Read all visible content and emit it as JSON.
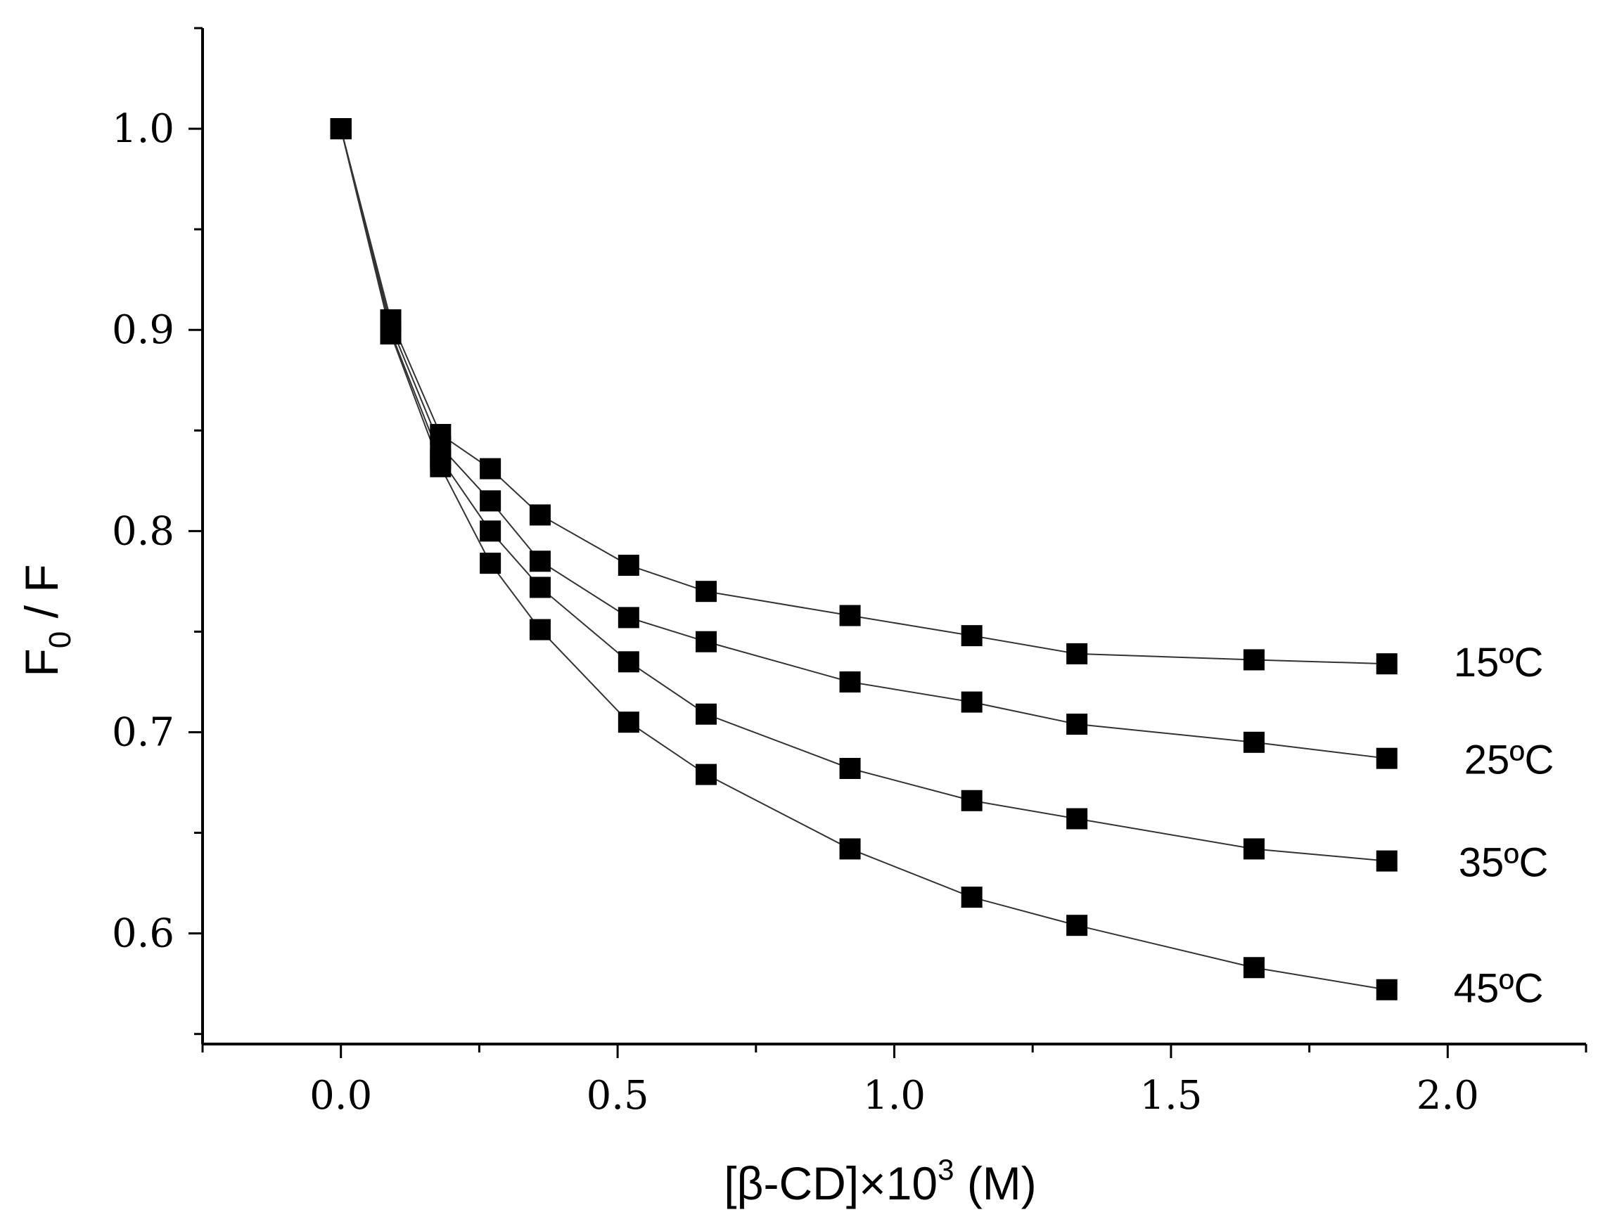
{
  "chart_data": {
    "type": "line",
    "title": "",
    "xlabel": "[β-CD]×10³ (M)",
    "xlabel_parts": {
      "pre": "[β-CD]×10",
      "sup": "3",
      "post": " (M)"
    },
    "ylabel": "F0 / F",
    "ylabel_parts": {
      "main": "F",
      "sub": "0",
      "post": " / F"
    },
    "xlim": [
      -0.25,
      2.25
    ],
    "ylim": [
      0.545,
      1.05
    ],
    "xticks": [
      0.0,
      0.5,
      1.0,
      1.5,
      2.0
    ],
    "xtick_labels": [
      "0.0",
      "0.5",
      "1.0",
      "1.5",
      "2.0"
    ],
    "yticks": [
      0.6,
      0.7,
      0.8,
      0.9,
      1.0
    ],
    "ytick_labels": [
      "0.6",
      "0.7",
      "0.8",
      "0.9",
      "1.0"
    ],
    "x_minor_step": 0.25,
    "y_minor_step": 0.05,
    "marker": "square",
    "color": "#000000",
    "x": [
      0.0,
      0.09,
      0.18,
      0.27,
      0.36,
      0.52,
      0.66,
      0.92,
      1.14,
      1.33,
      1.65,
      1.89
    ],
    "series": [
      {
        "name": "15ºC",
        "values": [
          1.0,
          0.905,
          0.848,
          0.831,
          0.808,
          0.783,
          0.77,
          0.758,
          0.748,
          0.739,
          0.736,
          0.734
        ]
      },
      {
        "name": "25ºC",
        "values": [
          1.0,
          0.902,
          0.842,
          0.815,
          0.785,
          0.757,
          0.745,
          0.725,
          0.715,
          0.704,
          0.695,
          0.687
        ]
      },
      {
        "name": "35ºC",
        "values": [
          1.0,
          0.899,
          0.836,
          0.8,
          0.772,
          0.735,
          0.709,
          0.682,
          0.666,
          0.657,
          0.642,
          0.636
        ]
      },
      {
        "name": "45ºC",
        "values": [
          1.0,
          0.898,
          0.832,
          0.784,
          0.751,
          0.705,
          0.679,
          0.642,
          0.618,
          0.604,
          0.583,
          0.572
        ]
      }
    ]
  }
}
